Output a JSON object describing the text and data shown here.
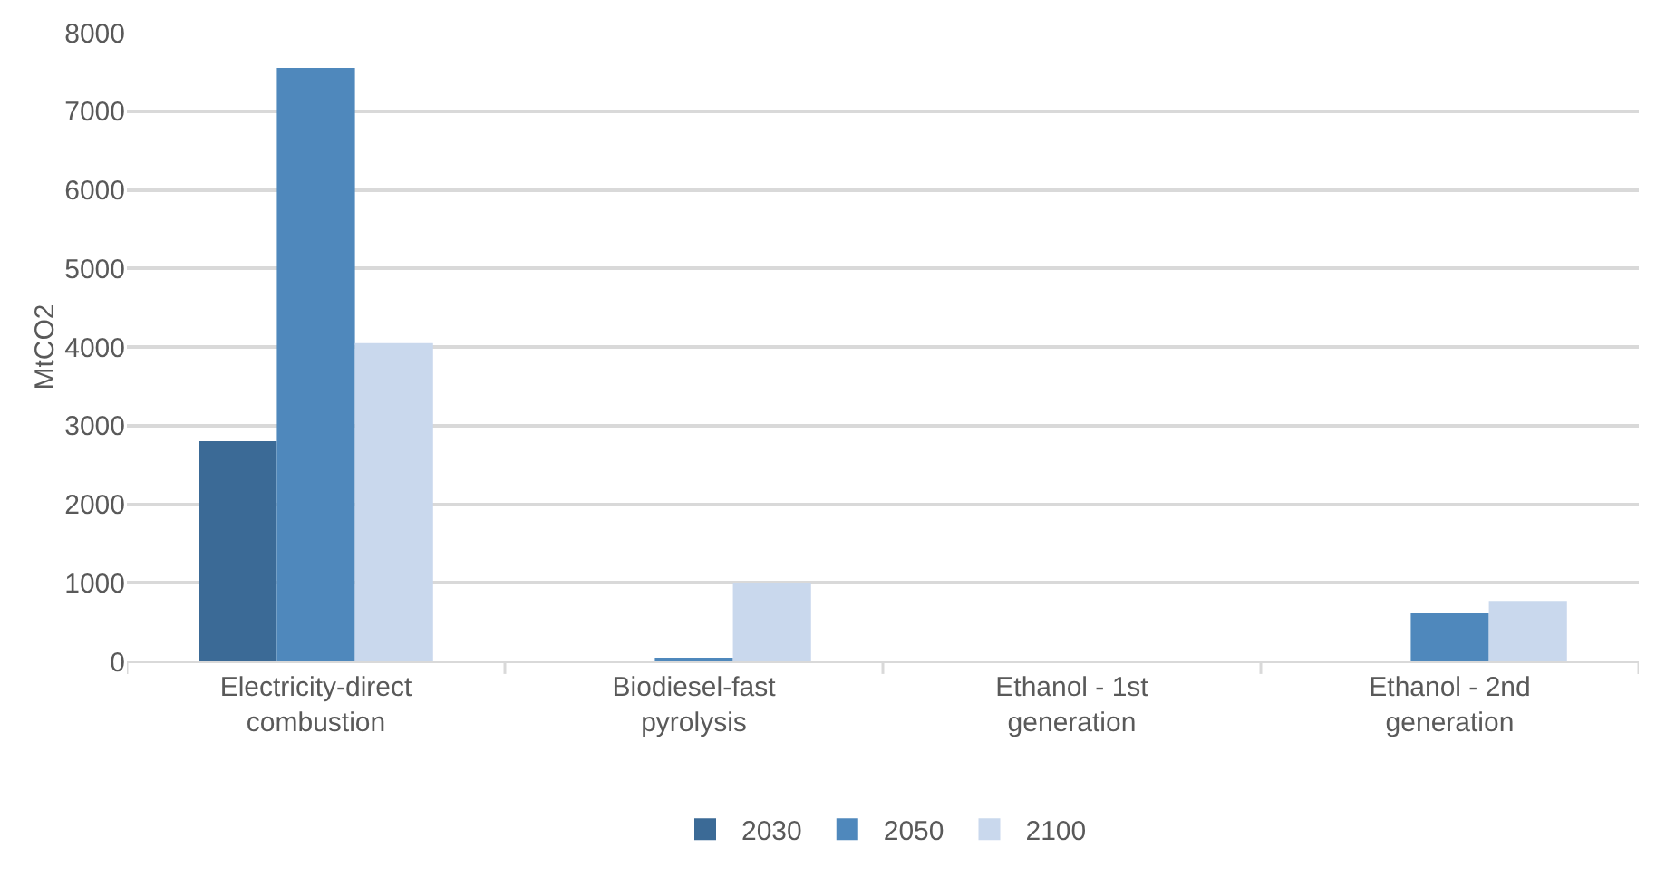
{
  "chart_data": {
    "type": "bar",
    "ylabel": "MtCO2",
    "categories": [
      "Electricity-direct combustion",
      "Biodiesel-fast pyrolysis",
      "Ethanol - 1st generation",
      "Ethanol - 2nd generation"
    ],
    "series": [
      {
        "name": "2030",
        "color": "#3b6a96",
        "values": [
          2800,
          0,
          0,
          0
        ]
      },
      {
        "name": "2050",
        "color": "#4f88bc",
        "values": [
          7550,
          30,
          0,
          610
        ]
      },
      {
        "name": "2100",
        "color": "#c9d8ed",
        "values": [
          4050,
          990,
          0,
          770
        ]
      }
    ],
    "ylim": [
      0,
      8000
    ],
    "yticks": [
      0,
      1000,
      2000,
      3000,
      4000,
      5000,
      6000,
      7000,
      8000
    ],
    "grid": "y",
    "legend": "bottom"
  }
}
